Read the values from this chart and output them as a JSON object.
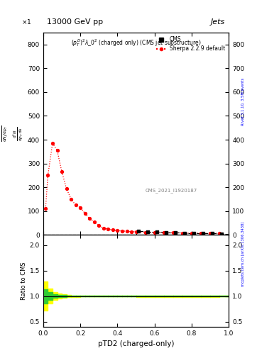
{
  "title_top": "13000 GeV pp",
  "title_right": "Jets",
  "plot_title": "$(p_T^{D})^2\\lambda\\_0^2$ (charged only) (CMS jet substructure)",
  "cms_label": "CMS",
  "sherpa_label": "Sherpa 2.2.9 default",
  "ref_label": "CMS_2021_I1920187",
  "xlabel": "pTD2 (charged-only)",
  "ylabel_main_lines": [
    "1",
    "mathrm d N_J",
    "/ mathrm d p_T",
    "mathrm d^2 N",
    "mathrm d p_T mathrm d lambda"
  ],
  "ylabel_ratio": "Ratio to CMS",
  "right_label_top": "Rivet 3.1.10, 3.5M events",
  "right_label_bot": "mcplots.cern.ch [arXiv:1306.3438]",
  "ylim_main": [
    0,
    850
  ],
  "ylim_ratio": [
    0.4,
    2.2
  ],
  "xlim": [
    0.0,
    1.0
  ],
  "sherpa_x": [
    0.0125,
    0.025,
    0.05,
    0.075,
    0.1,
    0.125,
    0.15,
    0.175,
    0.2,
    0.225,
    0.25,
    0.275,
    0.3,
    0.325,
    0.35,
    0.375,
    0.4,
    0.425,
    0.45,
    0.475,
    0.5,
    0.55,
    0.6,
    0.65,
    0.7,
    0.75,
    0.8,
    0.85,
    0.9,
    0.95
  ],
  "sherpa_y": [
    110,
    250,
    385,
    355,
    265,
    195,
    150,
    125,
    115,
    90,
    68,
    55,
    38,
    28,
    24,
    20,
    18,
    16,
    15,
    13,
    13,
    11,
    10,
    9,
    9,
    8,
    7,
    7,
    6,
    6
  ],
  "cms_step_x": [
    0.0,
    0.025,
    0.05,
    0.075,
    0.1,
    0.125,
    0.15,
    0.175,
    0.2,
    0.225,
    0.25,
    0.275,
    0.3,
    0.325,
    0.35,
    0.375,
    0.4,
    0.425,
    0.45,
    0.475,
    0.5,
    0.55,
    0.6,
    0.65,
    0.7,
    0.75,
    0.8,
    0.85,
    0.9,
    0.95,
    1.0
  ],
  "cms_step_y": [
    0,
    0,
    0,
    0,
    0,
    0,
    0,
    0,
    0,
    0,
    0,
    0,
    0,
    0,
    0,
    0,
    0,
    0,
    0,
    0,
    15,
    14,
    12,
    10,
    10,
    8,
    7,
    6,
    6,
    5,
    5
  ],
  "cms_sq_x": [
    0.5125,
    0.5625,
    0.6125,
    0.6625,
    0.7125,
    0.7625,
    0.8125,
    0.8625,
    0.9125,
    0.9625
  ],
  "cms_sq_y": [
    15,
    14,
    12,
    10,
    10,
    8,
    7,
    6,
    6,
    5
  ],
  "ratio_bin_edges": [
    0.0,
    0.025,
    0.05,
    0.075,
    0.1,
    0.125,
    0.15,
    0.175,
    0.2,
    0.225,
    0.25,
    0.275,
    0.3,
    0.325,
    0.35,
    0.375,
    0.4,
    0.425,
    0.45,
    0.475,
    0.5,
    0.55,
    0.6,
    0.65,
    0.7,
    0.75,
    0.8,
    0.85,
    0.9,
    0.95,
    1.0
  ],
  "ratio_yellow_lo": [
    0.72,
    0.85,
    0.92,
    0.95,
    0.97,
    0.98,
    0.985,
    0.985,
    0.99,
    0.99,
    0.99,
    0.99,
    0.99,
    0.99,
    0.99,
    0.99,
    0.99,
    0.99,
    0.99,
    0.99,
    0.985,
    0.985,
    0.985,
    0.985,
    0.985,
    0.985,
    0.985,
    0.985,
    0.985,
    0.99
  ],
  "ratio_yellow_hi": [
    1.28,
    1.15,
    1.08,
    1.05,
    1.03,
    1.02,
    1.015,
    1.015,
    1.01,
    1.01,
    1.01,
    1.01,
    1.01,
    1.01,
    1.01,
    1.01,
    1.01,
    1.01,
    1.01,
    1.01,
    1.015,
    1.015,
    1.015,
    1.015,
    1.015,
    1.015,
    1.015,
    1.015,
    1.015,
    1.01
  ],
  "ratio_green_lo": [
    0.86,
    0.92,
    0.96,
    0.975,
    0.984,
    0.99,
    0.992,
    0.993,
    0.995,
    0.995,
    0.995,
    0.995,
    0.995,
    0.995,
    0.995,
    0.995,
    0.995,
    0.995,
    0.995,
    0.995,
    0.992,
    0.992,
    0.992,
    0.992,
    0.992,
    0.992,
    0.992,
    0.992,
    0.992,
    0.995
  ],
  "ratio_green_hi": [
    1.14,
    1.08,
    1.04,
    1.025,
    1.016,
    1.01,
    1.008,
    1.007,
    1.005,
    1.005,
    1.005,
    1.005,
    1.005,
    1.005,
    1.005,
    1.005,
    1.005,
    1.005,
    1.005,
    1.005,
    1.008,
    1.008,
    1.008,
    1.008,
    1.008,
    1.008,
    1.008,
    1.008,
    1.008,
    1.005
  ],
  "cms_color": "black",
  "sherpa_color": "red",
  "background_color": "white"
}
